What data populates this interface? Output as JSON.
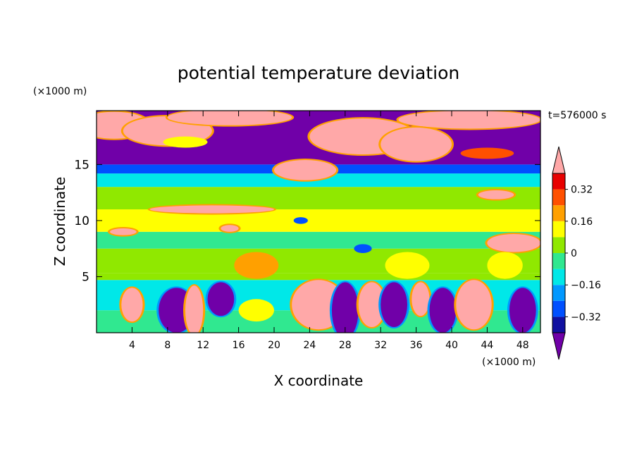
{
  "chart_data": {
    "type": "heatmap",
    "title": "potential temperature deviation",
    "xlabel": "X coordinate",
    "ylabel": "Z coordinate",
    "x_unit": "(×1000 m)",
    "y_unit": "(×1000 m)",
    "time_label": "t=576000 s",
    "xlim": [
      0,
      50
    ],
    "ylim": [
      0,
      19.8
    ],
    "x_ticks": [
      4,
      8,
      12,
      16,
      20,
      24,
      28,
      32,
      36,
      40,
      44,
      48
    ],
    "y_ticks": [
      5,
      10,
      15
    ],
    "colorbar": {
      "levels": [
        -0.4,
        -0.32,
        -0.24,
        -0.16,
        -0.08,
        0,
        0.08,
        0.16,
        0.24,
        0.32,
        0.4
      ],
      "tick_labels": [
        "0.32",
        "0.16",
        "0",
        "−0.16",
        "−0.32"
      ],
      "tick_values": [
        0.32,
        0.16,
        0,
        -0.16,
        -0.32
      ],
      "colors": [
        "#7000a8",
        "#1010a0",
        "#0050ff",
        "#0098ff",
        "#00e8e8",
        "#30e890",
        "#90e800",
        "#ffff00",
        "#ffa000",
        "#ff5000",
        "#e80000",
        "#ffa8a8"
      ]
    },
    "layers": [
      {
        "z_top": 2.0,
        "value": -0.04
      },
      {
        "z_top": 4.7,
        "value": -0.12
      },
      {
        "z_top": 5.3,
        "value": 0.03
      },
      {
        "z_top": 7.5,
        "value": 0.06
      },
      {
        "z_top": 9.0,
        "value": -0.06
      },
      {
        "z_top": 11.0,
        "value": 0.1
      },
      {
        "z_top": 13.0,
        "value": 0.04
      },
      {
        "z_top": 14.2,
        "value": -0.1
      },
      {
        "z_top": 15.0,
        "value": -0.3
      },
      {
        "z_top": 19.8,
        "value": -0.45
      }
    ],
    "blobs": [
      {
        "x": 2,
        "z": 18.5,
        "rx": 4,
        "rz": 1.2,
        "value": 0.45
      },
      {
        "x": 8,
        "z": 18.0,
        "rx": 5,
        "rz": 1.3,
        "value": 0.45
      },
      {
        "x": 15,
        "z": 19.2,
        "rx": 7,
        "rz": 0.7,
        "value": 0.45
      },
      {
        "x": 42,
        "z": 19.0,
        "rx": 8,
        "rz": 0.8,
        "value": 0.45
      },
      {
        "x": 30,
        "z": 17.5,
        "rx": 6,
        "rz": 1.6,
        "value": 0.45
      },
      {
        "x": 36,
        "z": 16.8,
        "rx": 4,
        "rz": 1.5,
        "value": 0.45
      },
      {
        "x": 23.5,
        "z": 14.5,
        "rx": 3.5,
        "rz": 0.9,
        "value": 0.45
      },
      {
        "x": 44,
        "z": 16.0,
        "rx": 3,
        "rz": 0.5,
        "value": 0.24
      },
      {
        "x": 10,
        "z": 17.0,
        "rx": 2.5,
        "rz": 0.5,
        "value": 0.12
      },
      {
        "x": 13,
        "z": 11.0,
        "rx": 7,
        "rz": 0.35,
        "value": 0.45
      },
      {
        "x": 45,
        "z": 12.3,
        "rx": 2,
        "rz": 0.4,
        "value": 0.45
      },
      {
        "x": 15,
        "z": 9.3,
        "rx": 1,
        "rz": 0.3,
        "value": 0.45
      },
      {
        "x": 3,
        "z": 9.0,
        "rx": 1.5,
        "rz": 0.3,
        "value": 0.45
      },
      {
        "x": 47,
        "z": 8.0,
        "rx": 3,
        "rz": 0.8,
        "value": 0.45
      },
      {
        "x": 18,
        "z": 6.0,
        "rx": 2.5,
        "rz": 1.2,
        "value": 0.16
      },
      {
        "x": 35,
        "z": 6.0,
        "rx": 2.5,
        "rz": 1.2,
        "value": 0.12
      },
      {
        "x": 46,
        "z": 6.0,
        "rx": 2,
        "rz": 1.2,
        "value": 0.12
      },
      {
        "x": 30,
        "z": 7.5,
        "rx": 1,
        "rz": 0.4,
        "value": -0.3
      },
      {
        "x": 23,
        "z": 10.0,
        "rx": 0.8,
        "rz": 0.3,
        "value": -0.3
      },
      {
        "x": 4,
        "z": 2.5,
        "rx": 1.2,
        "rz": 1.5,
        "value": 0.45
      },
      {
        "x": 9,
        "z": 2.0,
        "rx": 2,
        "rz": 2,
        "value": -0.45
      },
      {
        "x": 11,
        "z": 2.0,
        "rx": 1,
        "rz": 2.2,
        "value": 0.45
      },
      {
        "x": 14,
        "z": 3.0,
        "rx": 1.5,
        "rz": 1.5,
        "value": -0.45
      },
      {
        "x": 18,
        "z": 2.0,
        "rx": 2,
        "rz": 1,
        "value": 0.12
      },
      {
        "x": 25,
        "z": 2.5,
        "rx": 3,
        "rz": 2.2,
        "value": 0.4
      },
      {
        "x": 28,
        "z": 2.0,
        "rx": 1.5,
        "rz": 2.5,
        "value": -0.45
      },
      {
        "x": 31,
        "z": 2.5,
        "rx": 1.5,
        "rz": 2,
        "value": 0.4
      },
      {
        "x": 33.5,
        "z": 2.5,
        "rx": 1.5,
        "rz": 2,
        "value": -0.45
      },
      {
        "x": 36.5,
        "z": 3.0,
        "rx": 1,
        "rz": 1.5,
        "value": 0.45
      },
      {
        "x": 39,
        "z": 2.0,
        "rx": 1.5,
        "rz": 2,
        "value": -0.45
      },
      {
        "x": 42.5,
        "z": 2.5,
        "rx": 2,
        "rz": 2.2,
        "value": 0.45
      },
      {
        "x": 48,
        "z": 2.0,
        "rx": 1.5,
        "rz": 2,
        "value": -0.45
      }
    ]
  }
}
